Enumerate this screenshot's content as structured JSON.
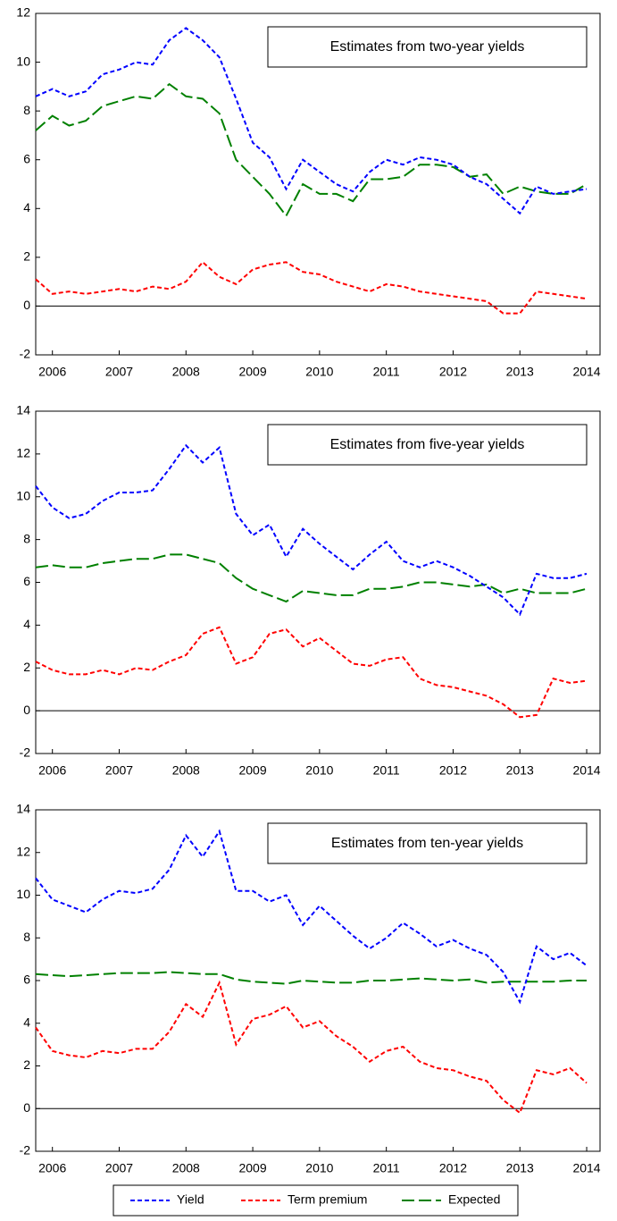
{
  "chart_data": [
    {
      "type": "line",
      "title": "Estimates from two-year yields",
      "x": [
        2005.75,
        2006,
        2006.25,
        2006.5,
        2006.75,
        2007,
        2007.25,
        2007.5,
        2007.75,
        2008,
        2008.25,
        2008.5,
        2008.75,
        2009,
        2009.25,
        2009.5,
        2009.75,
        2010,
        2010.25,
        2010.5,
        2010.75,
        2011,
        2011.25,
        2011.5,
        2011.75,
        2012,
        2012.25,
        2012.5,
        2012.75,
        2013,
        2013.25,
        2013.5,
        2013.75,
        2014
      ],
      "xlim": [
        2005.75,
        2014.2
      ],
      "xticks": [
        2006,
        2007,
        2008,
        2009,
        2010,
        2011,
        2012,
        2013,
        2014
      ],
      "ylim": [
        -2,
        12
      ],
      "yticks": [
        -2,
        0,
        2,
        4,
        6,
        8,
        10,
        12
      ],
      "series": [
        {
          "name": "Yield",
          "color": "#0000ff",
          "values": [
            8.6,
            8.9,
            8.6,
            8.8,
            9.5,
            9.7,
            10.0,
            9.9,
            10.9,
            11.4,
            10.9,
            10.2,
            8.5,
            6.7,
            6.1,
            4.8,
            6.0,
            5.5,
            5.0,
            4.7,
            5.5,
            6.0,
            5.8,
            6.1,
            6.0,
            5.8,
            5.3,
            5.0,
            4.4,
            3.8,
            4.9,
            4.6,
            4.7,
            4.8
          ]
        },
        {
          "name": "Term premium",
          "color": "#ff0000",
          "values": [
            1.1,
            0.5,
            0.6,
            0.5,
            0.6,
            0.7,
            0.6,
            0.8,
            0.7,
            1.0,
            1.8,
            1.2,
            0.9,
            1.5,
            1.7,
            1.8,
            1.4,
            1.3,
            1.0,
            0.8,
            0.6,
            0.9,
            0.8,
            0.6,
            0.5,
            0.4,
            0.3,
            0.2,
            -0.3,
            -0.3,
            0.6,
            0.5,
            0.4,
            0.3
          ]
        },
        {
          "name": "Expected",
          "color": "#008000",
          "values": [
            7.2,
            7.8,
            7.4,
            7.6,
            8.2,
            8.4,
            8.6,
            8.5,
            9.1,
            8.6,
            8.5,
            7.9,
            6.0,
            5.3,
            4.6,
            3.7,
            5.0,
            4.6,
            4.6,
            4.3,
            5.2,
            5.2,
            5.3,
            5.8,
            5.8,
            5.7,
            5.3,
            5.4,
            4.6,
            4.9,
            4.7,
            4.6,
            4.6,
            5.0
          ]
        }
      ]
    },
    {
      "type": "line",
      "title": "Estimates from five-year yields",
      "x": [
        2005.75,
        2006,
        2006.25,
        2006.5,
        2006.75,
        2007,
        2007.25,
        2007.5,
        2007.75,
        2008,
        2008.25,
        2008.5,
        2008.75,
        2009,
        2009.25,
        2009.5,
        2009.75,
        2010,
        2010.25,
        2010.5,
        2010.75,
        2011,
        2011.25,
        2011.5,
        2011.75,
        2012,
        2012.25,
        2012.5,
        2012.75,
        2013,
        2013.25,
        2013.5,
        2013.75,
        2014
      ],
      "xlim": [
        2005.75,
        2014.2
      ],
      "xticks": [
        2006,
        2007,
        2008,
        2009,
        2010,
        2011,
        2012,
        2013,
        2014
      ],
      "ylim": [
        -2,
        14
      ],
      "yticks": [
        -2,
        0,
        2,
        4,
        6,
        8,
        10,
        12,
        14
      ],
      "series": [
        {
          "name": "Yield",
          "color": "#0000ff",
          "values": [
            10.5,
            9.5,
            9.0,
            9.2,
            9.8,
            10.2,
            10.2,
            10.3,
            11.3,
            12.4,
            11.6,
            12.3,
            9.2,
            8.2,
            8.7,
            7.2,
            8.5,
            7.8,
            7.2,
            6.6,
            7.3,
            7.9,
            7.0,
            6.7,
            7.0,
            6.7,
            6.3,
            5.8,
            5.3,
            4.5,
            6.4,
            6.2,
            6.2,
            6.4
          ]
        },
        {
          "name": "Term premium",
          "color": "#ff0000",
          "values": [
            2.3,
            1.9,
            1.7,
            1.7,
            1.9,
            1.7,
            2.0,
            1.9,
            2.3,
            2.6,
            3.6,
            3.9,
            2.2,
            2.5,
            3.6,
            3.8,
            3.0,
            3.4,
            2.8,
            2.2,
            2.1,
            2.4,
            2.5,
            1.5,
            1.2,
            1.1,
            0.9,
            0.7,
            0.3,
            -0.3,
            -0.2,
            1.5,
            1.3,
            1.4
          ]
        },
        {
          "name": "Expected",
          "color": "#008000",
          "values": [
            6.7,
            6.8,
            6.7,
            6.7,
            6.9,
            7.0,
            7.1,
            7.1,
            7.3,
            7.3,
            7.1,
            6.9,
            6.2,
            5.7,
            5.4,
            5.1,
            5.6,
            5.5,
            5.4,
            5.4,
            5.7,
            5.7,
            5.8,
            6.0,
            6.0,
            5.9,
            5.8,
            5.9,
            5.5,
            5.7,
            5.5,
            5.5,
            5.5,
            5.7
          ]
        }
      ]
    },
    {
      "type": "line",
      "title": "Estimates from ten-year yields",
      "x": [
        2005.75,
        2006,
        2006.25,
        2006.5,
        2006.75,
        2007,
        2007.25,
        2007.5,
        2007.75,
        2008,
        2008.25,
        2008.5,
        2008.75,
        2009,
        2009.25,
        2009.5,
        2009.75,
        2010,
        2010.25,
        2010.5,
        2010.75,
        2011,
        2011.25,
        2011.5,
        2011.75,
        2012,
        2012.25,
        2012.5,
        2012.75,
        2013,
        2013.25,
        2013.5,
        2013.75,
        2014
      ],
      "xlim": [
        2005.75,
        2014.2
      ],
      "xticks": [
        2006,
        2007,
        2008,
        2009,
        2010,
        2011,
        2012,
        2013,
        2014
      ],
      "ylim": [
        -2,
        14
      ],
      "yticks": [
        -2,
        0,
        2,
        4,
        6,
        8,
        10,
        12,
        14
      ],
      "series": [
        {
          "name": "Yield",
          "color": "#0000ff",
          "values": [
            10.8,
            9.8,
            9.5,
            9.2,
            9.8,
            10.2,
            10.1,
            10.3,
            11.2,
            12.8,
            11.8,
            13.0,
            10.2,
            10.2,
            9.7,
            10.0,
            8.6,
            9.5,
            8.8,
            8.1,
            7.5,
            8.0,
            8.7,
            8.2,
            7.6,
            7.9,
            7.5,
            7.2,
            6.4,
            5.0,
            7.6,
            7.0,
            7.3,
            6.7
          ]
        },
        {
          "name": "Term premium",
          "color": "#ff0000",
          "values": [
            3.8,
            2.7,
            2.5,
            2.4,
            2.7,
            2.6,
            2.8,
            2.8,
            3.6,
            4.9,
            4.3,
            5.9,
            3.0,
            4.2,
            4.4,
            4.8,
            3.8,
            4.1,
            3.4,
            2.9,
            2.2,
            2.7,
            2.9,
            2.2,
            1.9,
            1.8,
            1.5,
            1.3,
            0.4,
            -0.2,
            1.8,
            1.6,
            1.9,
            1.2
          ]
        },
        {
          "name": "Expected",
          "color": "#008000",
          "values": [
            6.3,
            6.25,
            6.2,
            6.25,
            6.3,
            6.35,
            6.35,
            6.35,
            6.4,
            6.35,
            6.3,
            6.3,
            6.05,
            5.95,
            5.9,
            5.85,
            6.0,
            5.95,
            5.9,
            5.9,
            6.0,
            6.0,
            6.05,
            6.1,
            6.05,
            6.0,
            6.05,
            5.9,
            5.95,
            5.95,
            5.95,
            5.95,
            6.0,
            6.0
          ]
        }
      ]
    }
  ]
}
